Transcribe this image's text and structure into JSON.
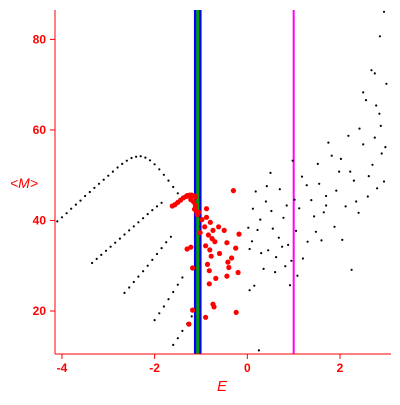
{
  "chart_data": {
    "type": "scatter",
    "title": "",
    "xlabel": "E",
    "ylabel": "<M>",
    "xlim": [
      -4.15,
      3.1
    ],
    "ylim": [
      10.5,
      86.5
    ],
    "x_ticks": [
      -4,
      -2,
      0,
      2
    ],
    "y_ticks": [
      20,
      40,
      60,
      80
    ],
    "grid": false,
    "legend": "none",
    "series": [
      {
        "color": "#000000",
        "values": [
          [
            -4.1,
            39.8
          ],
          [
            -4.0,
            40.7
          ],
          [
            -3.9,
            41.6
          ],
          [
            -3.8,
            42.6
          ],
          [
            -3.7,
            43.5
          ],
          [
            -3.6,
            44.4
          ],
          [
            -3.5,
            45.4
          ],
          [
            -3.4,
            46.3
          ],
          [
            -3.3,
            47.2
          ],
          [
            -3.2,
            48.1
          ],
          [
            -3.1,
            49.0
          ],
          [
            -3.0,
            49.9
          ],
          [
            -2.9,
            50.8
          ],
          [
            -2.8,
            51.7
          ],
          [
            -2.7,
            52.5
          ],
          [
            -2.6,
            53.2
          ],
          [
            -2.5,
            53.8
          ],
          [
            -2.4,
            54.1
          ],
          [
            -2.3,
            54.2
          ],
          [
            -2.2,
            53.9
          ],
          [
            -2.1,
            53.3
          ],
          [
            -2.0,
            52.4
          ],
          [
            -1.9,
            51.3
          ],
          [
            -1.8,
            50.1
          ],
          [
            -1.7,
            48.8
          ],
          [
            -1.6,
            47.4
          ],
          [
            -1.5,
            46.0
          ],
          [
            -3.35,
            30.6
          ],
          [
            -3.25,
            31.5
          ],
          [
            -3.15,
            32.4
          ],
          [
            -3.05,
            33.3
          ],
          [
            -2.95,
            34.2
          ],
          [
            -2.85,
            35.1
          ],
          [
            -2.75,
            36.0
          ],
          [
            -2.65,
            36.9
          ],
          [
            -2.55,
            37.8
          ],
          [
            -2.45,
            38.7
          ],
          [
            -2.35,
            39.6
          ],
          [
            -2.25,
            40.5
          ],
          [
            -2.15,
            41.4
          ],
          [
            -2.05,
            42.3
          ],
          [
            -1.95,
            43.1
          ],
          [
            -1.85,
            43.9
          ],
          [
            -2.65,
            24.0
          ],
          [
            -2.55,
            25.2
          ],
          [
            -2.45,
            26.4
          ],
          [
            -2.35,
            27.6
          ],
          [
            -2.25,
            28.8
          ],
          [
            -2.15,
            30.0
          ],
          [
            -2.05,
            31.3
          ],
          [
            -1.95,
            32.6
          ],
          [
            -1.85,
            33.9
          ],
          [
            -1.75,
            35.2
          ],
          [
            -1.65,
            36.4
          ],
          [
            -2.0,
            18.0
          ],
          [
            -1.9,
            19.5
          ],
          [
            -1.8,
            21.0
          ],
          [
            -1.7,
            22.6
          ],
          [
            -1.6,
            24.2
          ],
          [
            -1.5,
            25.8
          ],
          [
            -1.4,
            27.4
          ],
          [
            -1.6,
            12.5
          ],
          [
            -1.5,
            14.0
          ],
          [
            -1.4,
            15.6
          ],
          [
            -1.3,
            17.2
          ],
          [
            -1.2,
            18.8
          ],
          [
            0.25,
            11.3
          ],
          [
            0.05,
            24.6
          ],
          [
            0.15,
            25.6
          ],
          [
            0.05,
            33.7
          ],
          [
            0.22,
            37.9
          ],
          [
            0.45,
            33.4
          ],
          [
            0.6,
            28.6
          ],
          [
            0.78,
            40.6
          ],
          [
            0.3,
            32.8
          ],
          [
            0.88,
            34.6
          ],
          [
            1.05,
            37.7
          ],
          [
            0.4,
            44.2
          ],
          [
            0.7,
            46.9
          ],
          [
            0.95,
            31.1
          ],
          [
            1.12,
            42.7
          ],
          [
            1.3,
            35.3
          ],
          [
            0.55,
            38.2
          ],
          [
            0.12,
            42.6
          ],
          [
            0.82,
            29.9
          ],
          [
            1.28,
            47.8
          ],
          [
            1.44,
            40.9
          ],
          [
            1.6,
            35.6
          ],
          [
            0.35,
            29.3
          ],
          [
            1.52,
            52.5
          ],
          [
            1.7,
            45.4
          ],
          [
            1.88,
            38.6
          ],
          [
            0.62,
            31.9
          ],
          [
            1.98,
            50.8
          ],
          [
            2.12,
            43.1
          ],
          [
            2.3,
            48.8
          ],
          [
            1.2,
            31.6
          ],
          [
            2.05,
            35.7
          ],
          [
            2.5,
            56.8
          ],
          [
            2.7,
            52.3
          ],
          [
            2.88,
            60.9
          ],
          [
            2.6,
            45.3
          ],
          [
            2.95,
            48.6
          ],
          [
            2.4,
            41.7
          ],
          [
            2.78,
            65.4
          ],
          [
            2.25,
            29.1
          ],
          [
            0.5,
            50.5
          ],
          [
            0.98,
            53.2
          ],
          [
            0.18,
            46.4
          ],
          [
            1.75,
            57.2
          ],
          [
            2.18,
            58.7
          ],
          [
            0.92,
            25.7
          ],
          [
            1.08,
            27.8
          ],
          [
            0.02,
            38.4
          ],
          [
            0.28,
            40.2
          ],
          [
            0.68,
            36.2
          ],
          [
            0.42,
            47.6
          ],
          [
            0.85,
            43.3
          ],
          [
            1.18,
            49.7
          ],
          [
            1.38,
            44.5
          ],
          [
            1.55,
            48.1
          ],
          [
            1.82,
            54.3
          ],
          [
            2.02,
            53.6
          ],
          [
            2.42,
            60.3
          ],
          [
            2.56,
            66.6
          ],
          [
            2.75,
            58.3
          ],
          [
            2.9,
            54.8
          ],
          [
            3.0,
            70.2
          ],
          [
            2.68,
            73.2
          ],
          [
            2.85,
            63.6
          ],
          [
            2.98,
            56.2
          ],
          [
            2.86,
            80.7
          ],
          [
            2.95,
            86.1
          ],
          [
            2.5,
            68.3
          ],
          [
            2.75,
            72.5
          ],
          [
            1.65,
            41.8
          ],
          [
            1.92,
            46.6
          ],
          [
            2.22,
            50.8
          ],
          [
            2.35,
            44.2
          ],
          [
            2.62,
            49.8
          ],
          [
            2.8,
            47.1
          ],
          [
            0.1,
            35.4
          ],
          [
            0.52,
            42.1
          ],
          [
            0.75,
            34.2
          ],
          [
            1.02,
            44.6
          ],
          [
            1.48,
            37.5
          ],
          [
            1.7,
            43.3
          ]
        ]
      },
      {
        "color": "#ff0000",
        "values": [
          [
            -1.62,
            43.2
          ],
          [
            -1.56,
            43.5
          ],
          [
            -1.5,
            44.0
          ],
          [
            -1.44,
            44.5
          ],
          [
            -1.38,
            45.0
          ],
          [
            -1.32,
            45.3
          ],
          [
            -1.26,
            45.5
          ],
          [
            -1.2,
            45.6
          ],
          [
            -1.14,
            45.4
          ],
          [
            -1.3,
            45.5
          ],
          [
            -1.24,
            45.6
          ],
          [
            -1.18,
            45.5
          ],
          [
            -1.12,
            45.2
          ],
          [
            -1.22,
            44.6
          ],
          [
            -1.16,
            44.1
          ],
          [
            -1.12,
            43.3
          ],
          [
            -1.14,
            42.5
          ],
          [
            -1.1,
            42.0
          ],
          [
            -1.08,
            41.3
          ],
          [
            -1.05,
            41.8
          ],
          [
            -0.98,
            40.2
          ],
          [
            -0.88,
            40.7
          ],
          [
            -0.8,
            39.6
          ],
          [
            -0.92,
            38.6
          ],
          [
            -0.74,
            37.8
          ],
          [
            -0.84,
            36.8
          ],
          [
            -0.76,
            36.0
          ],
          [
            -0.7,
            35.3
          ],
          [
            -0.9,
            34.4
          ],
          [
            -0.81,
            33.5
          ],
          [
            -0.78,
            32.1
          ],
          [
            -0.86,
            30.3
          ],
          [
            -0.82,
            28.9
          ],
          [
            -0.68,
            27.2
          ],
          [
            -0.74,
            21.5
          ],
          [
            -0.72,
            20.9
          ],
          [
            -0.9,
            18.6
          ],
          [
            -0.5,
            37.8
          ],
          [
            -0.44,
            35.1
          ],
          [
            -0.6,
            32.7
          ],
          [
            -0.42,
            30.8
          ],
          [
            -0.4,
            29.6
          ],
          [
            -0.25,
            33.9
          ],
          [
            -0.34,
            31.7
          ],
          [
            -0.18,
            37.0
          ],
          [
            -0.44,
            27.7
          ],
          [
            -1.22,
            34.1
          ],
          [
            -1.18,
            29.5
          ],
          [
            -1.3,
            33.7
          ],
          [
            -0.3,
            46.6
          ],
          [
            -1.26,
            17.1
          ],
          [
            -1.18,
            20.2
          ],
          [
            -0.88,
            42.6
          ],
          [
            -0.82,
            26.0
          ],
          [
            -0.24,
            19.7
          ],
          [
            -0.2,
            28.5
          ],
          [
            -0.62,
            38.6
          ],
          [
            -1.02,
            37.3
          ]
        ]
      }
    ],
    "vertical_lines": [
      {
        "x": -1.12,
        "color": "#0000ff"
      },
      {
        "x": -1.02,
        "color": "#0000ff"
      },
      {
        "x": -1.07,
        "color": "#00a000"
      },
      {
        "x": 1.0,
        "color": "#ff00ff"
      }
    ],
    "axis_color": "#ff0000"
  }
}
